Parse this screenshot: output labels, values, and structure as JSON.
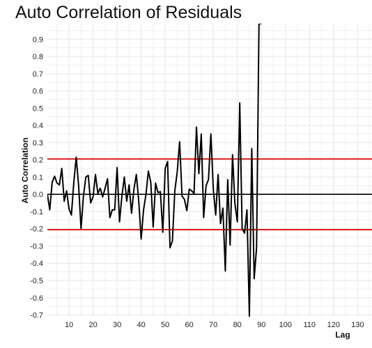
{
  "chart_data": {
    "type": "line",
    "title": "Auto Correlation of Residuals",
    "xlabel": "Lag",
    "ylabel": "Auto Correlation",
    "xlim": [
      1,
      136
    ],
    "ylim": [
      -0.71,
      0.99
    ],
    "x_ticks": [
      10,
      20,
      30,
      40,
      50,
      60,
      70,
      80,
      90,
      100,
      110,
      120,
      130
    ],
    "y_ticks": [
      -0.7,
      -0.6,
      -0.5,
      -0.4,
      -0.3,
      -0.2,
      -0.1,
      0.0,
      0.1,
      0.2,
      0.3,
      0.4,
      0.5,
      0.6,
      0.7,
      0.8,
      0.9
    ],
    "grid": true,
    "zero_line": 0,
    "confidence_bounds": [
      0.205,
      -0.205
    ],
    "colors": {
      "series": "#000000",
      "bounds": "#e31a1c",
      "grid": "#e6e6e6"
    },
    "series": [
      {
        "x": [
          1,
          2,
          3,
          4,
          5,
          6,
          7,
          8,
          9,
          10,
          11,
          12,
          13,
          14,
          15,
          16,
          17,
          18,
          19,
          20,
          21,
          22,
          23,
          24,
          25,
          26,
          27,
          28,
          29,
          30,
          31,
          32,
          33,
          34,
          35,
          36,
          37,
          38,
          39,
          40,
          41,
          42,
          43,
          44,
          45,
          46,
          47,
          48,
          49,
          50,
          51,
          52,
          53,
          54,
          55,
          56,
          57,
          58,
          59,
          60,
          61,
          62,
          63,
          64,
          65,
          66,
          67,
          68,
          69,
          70,
          71,
          72,
          73,
          74,
          75,
          76,
          77,
          78,
          79,
          80,
          81,
          82,
          83,
          84,
          85,
          86,
          87,
          88,
          89,
          90
        ],
        "values": [
          0.0,
          -0.09,
          0.07,
          0.105,
          0.065,
          0.055,
          0.15,
          -0.04,
          0.02,
          -0.085,
          -0.12,
          0.07,
          0.215,
          0.05,
          -0.2,
          -0.01,
          0.1,
          0.11,
          -0.05,
          -0.015,
          0.115,
          0.005,
          0.035,
          -0.015,
          0.035,
          0.09,
          -0.135,
          -0.09,
          -0.09,
          0.155,
          -0.16,
          -0.01,
          0.1,
          -0.04,
          0.055,
          -0.11,
          0.03,
          0.115,
          -0.04,
          -0.26,
          -0.09,
          0.0,
          0.135,
          0.07,
          -0.19,
          0.065,
          0.01,
          0.015,
          -0.22,
          0.15,
          0.19,
          -0.31,
          -0.27,
          0.02,
          0.13,
          0.305,
          -0.01,
          -0.03,
          -0.095,
          0.03,
          0.02,
          0.005,
          0.39,
          0.12,
          0.35,
          -0.135,
          0.05,
          0.085,
          0.35,
          0.03,
          -0.12,
          0.115,
          -0.17,
          -0.08,
          -0.445,
          0.085,
          -0.295,
          0.23,
          -0.055,
          -0.16,
          0.53,
          -0.2,
          -0.225,
          -0.09,
          -0.71,
          0.265,
          -0.49,
          -0.31,
          0.99,
          0.99
        ]
      }
    ]
  }
}
